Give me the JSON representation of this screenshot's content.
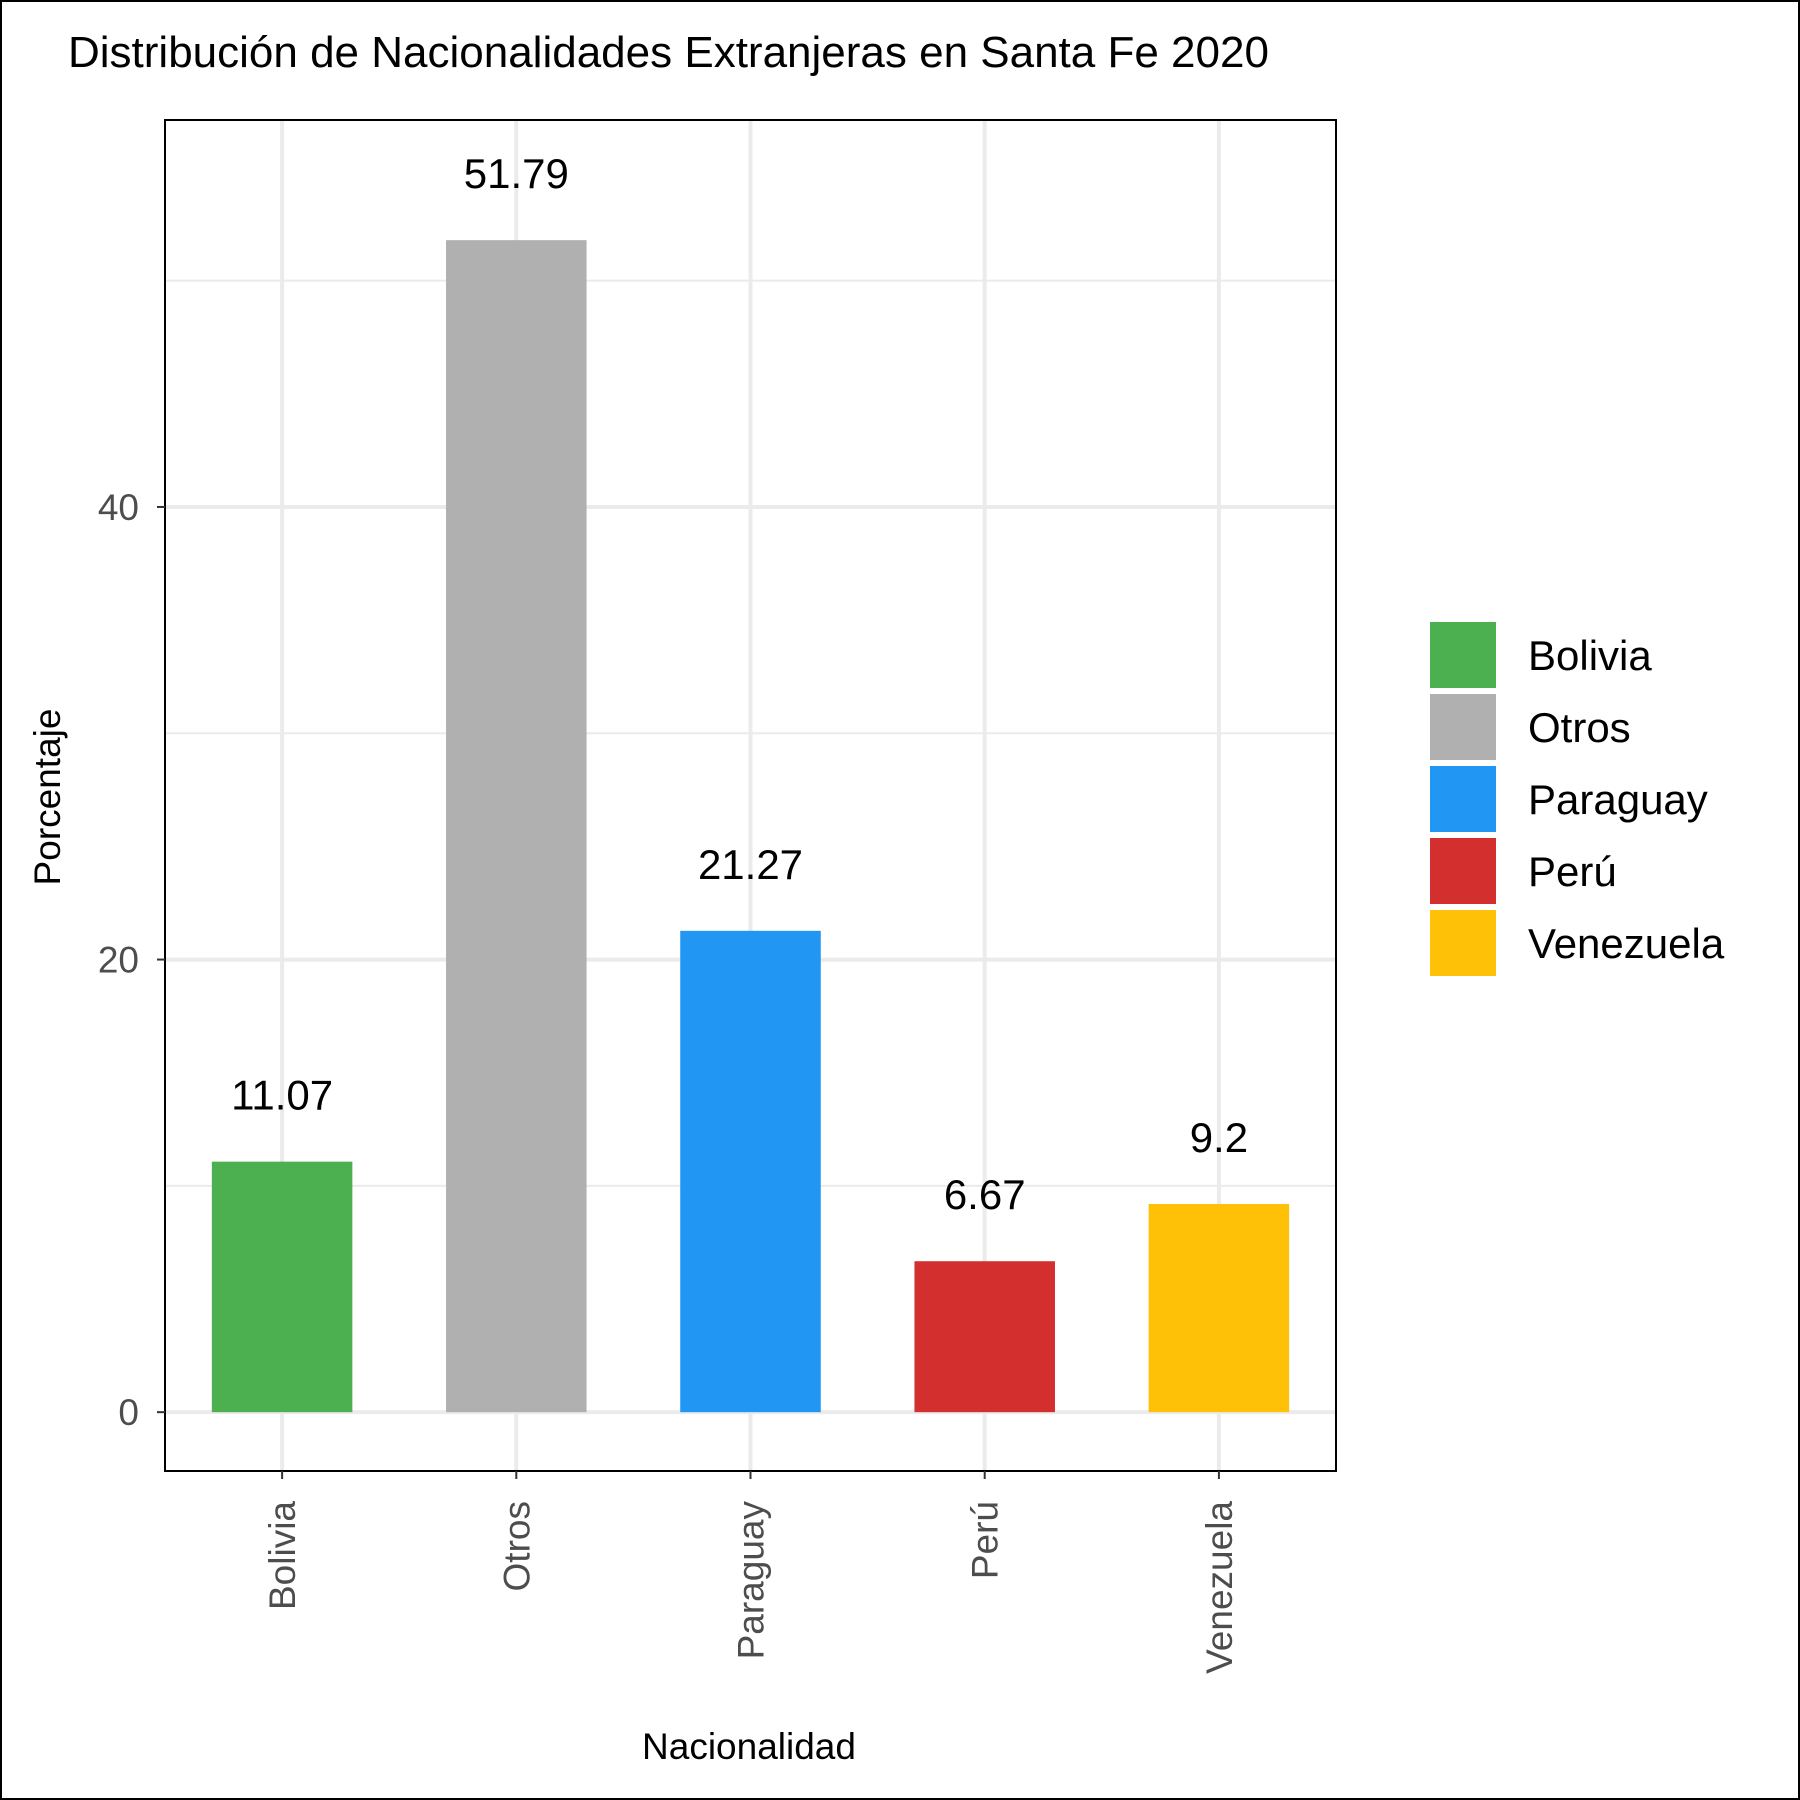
{
  "chart_data": {
    "type": "bar",
    "title": "Distribución de Nacionalidades Extranjeras en Santa Fe 2020",
    "xlabel": "Nacionalidad",
    "ylabel": "Porcentaje",
    "categories": [
      "Bolivia",
      "Otros",
      "Paraguay",
      "Perú",
      "Venezuela"
    ],
    "values": [
      11.07,
      51.79,
      21.27,
      6.67,
      9.2
    ],
    "data_labels": [
      "11.07",
      "51.79",
      "21.27",
      "6.67",
      "9.2"
    ],
    "colors": [
      "#4caf50",
      "#b0b0b0",
      "#2196f3",
      "#d32f2f",
      "#ffc107"
    ],
    "ylim": [
      -2.6,
      57.1
    ],
    "yticks": [
      0,
      20,
      40
    ],
    "ytick_labels": [
      "0",
      "20",
      "40"
    ],
    "grid": true,
    "legend": {
      "position": "right",
      "entries": [
        "Bolivia",
        "Otros",
        "Paraguay",
        "Perú",
        "Venezuela"
      ]
    }
  }
}
